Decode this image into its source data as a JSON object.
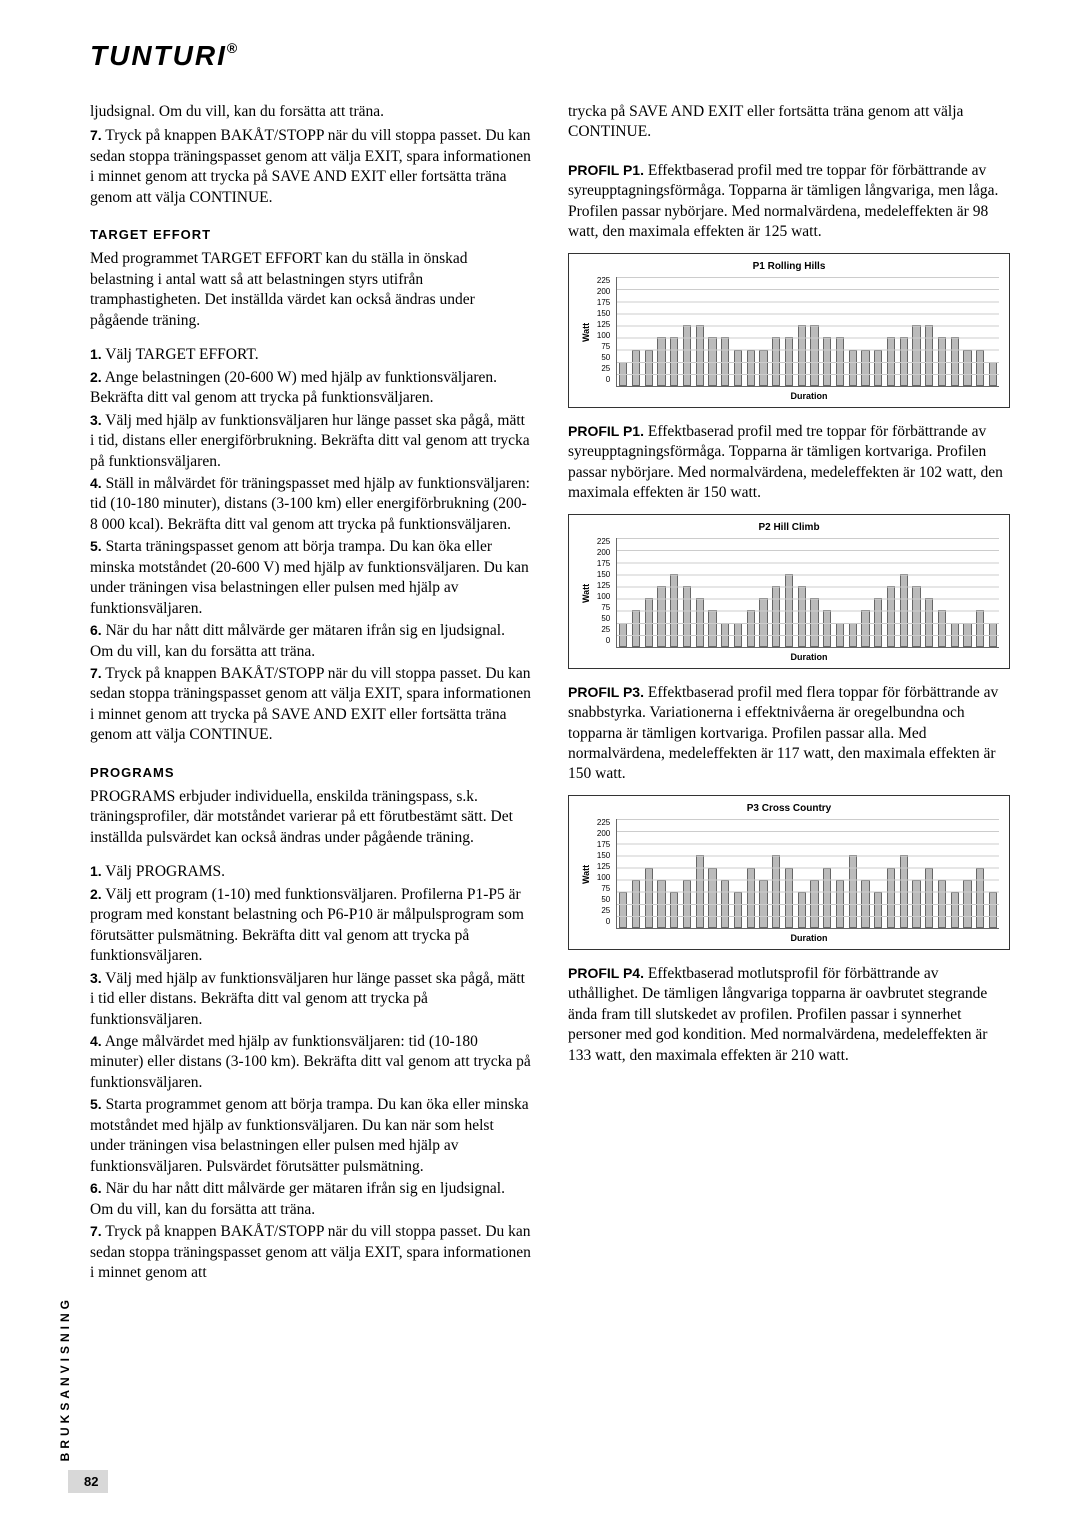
{
  "logo": "TUNTURI",
  "logo_reg": "®",
  "side_label": "BRUKSANVISNING",
  "page_number": "82",
  "left": {
    "intro_top": "ljudsignal. Om du vill, kan du forsätta att träna.",
    "intro_7": "Tryck på knappen BAKÅT/STOPP när du vill stoppa passet. Du kan sedan stoppa träningspasset genom att välja EXIT, spara informationen i minnet genom att trycka på SAVE AND EXIT eller fortsätta träna genom att välja CONTINUE.",
    "target_head": "TARGET EFFORT",
    "target_intro": "Med programmet TARGET EFFORT kan du ställa in önskad belastning i antal watt så att belastningen styrs utifrån tramphastigheten. Det inställda värdet kan också ändras under pågående träning.",
    "t1": "Välj TARGET EFFORT.",
    "t2": "Ange belastningen (20-600 W) med hjälp av funktionsväljaren. Bekräfta ditt val genom att trycka på funktionsväljaren.",
    "t3": "Välj med hjälp av funktionsväljaren hur länge passet ska pågå, mätt i tid, distans eller energiförbrukning. Bekräfta ditt val genom att trycka på funktionsväljaren.",
    "t4": "Ställ in målvärdet för träningspasset med hjälp av funktionsväljaren: tid (10-180 minuter), distans (3-100 km) eller energiförbrukning (200-8 000 kcal). Bekräfta ditt val genom att trycka på funktionsväljaren.",
    "t5": "Starta träningspasset genom att börja trampa. Du kan öka eller minska motståndet (20-600 V) med hjälp av funktionsväljaren. Du kan under träningen visa belastningen eller pulsen med hjälp av funktionsväljaren.",
    "t6": "När du har nått ditt målvärde ger mätaren ifrån sig en ljudsignal. Om du vill, kan du forsätta att träna.",
    "t7": "Tryck på knappen BAKÅT/STOPP när du vill stoppa passet. Du kan sedan stoppa träningspasset genom att välja EXIT, spara informationen i minnet genom att trycka på SAVE AND EXIT eller fortsätta träna genom att välja CONTINUE.",
    "prog_head": "PROGRAMS",
    "prog_intro": "PROGRAMS erbjuder individuella, enskilda träningspass, s.k. träningsprofiler, där motståndet varierar på ett förutbestämt sätt. Det inställda pulsvärdet kan också ändras under pågående träning.",
    "p1": "Välj PROGRAMS.",
    "p2": "Välj ett program (1-10) med funktionsväljaren. Profilerna P1-P5 är program med konstant belastning och P6-P10 är målpulsprogram som förutsätter pulsmätning. Bekräfta ditt val genom att trycka på funktionsväljaren.",
    "p3": "Välj med hjälp av funktionsväljaren hur länge passet ska pågå, mätt i tid eller distans. Bekräfta ditt val genom att trycka på funktionsväljaren.",
    "p4": "Ange målvärdet med hjälp av funktionsväljaren: tid (10-180 minuter) eller distans (3-100 km). Bekräfta ditt val genom att trycka på funktionsväljaren.",
    "p5": "Starta programmet genom att börja trampa. Du kan öka eller minska motståndet med hjälp av funktionsväljaren. Du kan när som helst under träningen visa belastningen eller pulsen med hjälp av funktionsväljaren. Pulsvärdet förutsätter pulsmätning.",
    "p6": "När du har nått ditt målvärde ger mätaren ifrån sig en ljudsignal. Om du vill, kan du forsätta att träna.",
    "p7": "Tryck på knappen BAKÅT/STOPP när du vill stoppa passet. Du kan sedan stoppa träningspasset genom att välja EXIT, spara informationen i minnet genom att"
  },
  "right": {
    "cont": "trycka på SAVE AND EXIT eller fortsätta träna genom att välja CONTINUE.",
    "profile1_label": "PROFIL P1.",
    "profile1_text": " Effektbaserad profil med tre toppar för förbättrande av syreupptagningsförmåga. Topparna är tämligen långvariga, men låga. Profilen passar nybörjare. Med normalvärdena, medeleffekten är 98 watt, den maximala effekten är 125 watt.",
    "profile1b_label": "PROFIL P1.",
    "profile1b_text": " Effektbaserad profil med tre toppar för förbättrande av syreupptagningsförmåga. Topparna är tämligen kortvariga. Profilen passar nybörjare. Med normalvärdena, medeleffekten är 102 watt, den maximala effekten är 150 watt.",
    "profile3_label": "PROFIL P3.",
    "profile3_text": " Effektbaserad profil med flera toppar för förbättrande av snabbstyrka. Variationerna i effektnivåerna är oregelbundna och topparna är tämligen kortvariga. Profilen passar alla. Med normalvärdena, medeleffekten är 117 watt, den maximala effekten är 150 watt.",
    "profile4_label": "PROFIL P4.",
    "profile4_text": " Effektbaserad motlutsprofil för förbättrande av uthållighet. De tämligen långvariga topparna är oavbrutet stegrande ända fram till slutskedet av profilen. Profilen passar i synnerhet personer med god kondition. Med normalvärdena, medeleffekten är 133 watt, den maximala effekten är 210 watt."
  },
  "charts": {
    "ylabel": "Watt",
    "xlabel": "Duration",
    "yticks": [
      "225",
      "200",
      "175",
      "150",
      "125",
      "100",
      "75",
      "50",
      "25",
      "0"
    ],
    "ylim": [
      0,
      225
    ],
    "bar_fill": "#bbbbbb",
    "bar_border": "#666666",
    "grid_color": "#cccccc",
    "c1": {
      "title": "P1 Rolling Hills",
      "values": [
        50,
        75,
        75,
        100,
        100,
        125,
        125,
        100,
        100,
        75,
        75,
        75,
        100,
        100,
        125,
        125,
        100,
        100,
        75,
        75,
        75,
        100,
        100,
        125,
        125,
        100,
        100,
        75,
        75,
        50
      ]
    },
    "c2": {
      "title": "P2 Hill Climb",
      "values": [
        50,
        75,
        100,
        125,
        150,
        125,
        100,
        75,
        50,
        50,
        75,
        100,
        125,
        150,
        125,
        100,
        75,
        50,
        50,
        75,
        100,
        125,
        150,
        125,
        100,
        75,
        50,
        50,
        75,
        50
      ]
    },
    "c3": {
      "title": "P3 Cross Country",
      "values": [
        75,
        100,
        125,
        100,
        75,
        100,
        150,
        125,
        100,
        75,
        125,
        100,
        150,
        125,
        75,
        100,
        125,
        100,
        150,
        100,
        75,
        125,
        150,
        100,
        125,
        100,
        75,
        100,
        125,
        75
      ]
    }
  }
}
